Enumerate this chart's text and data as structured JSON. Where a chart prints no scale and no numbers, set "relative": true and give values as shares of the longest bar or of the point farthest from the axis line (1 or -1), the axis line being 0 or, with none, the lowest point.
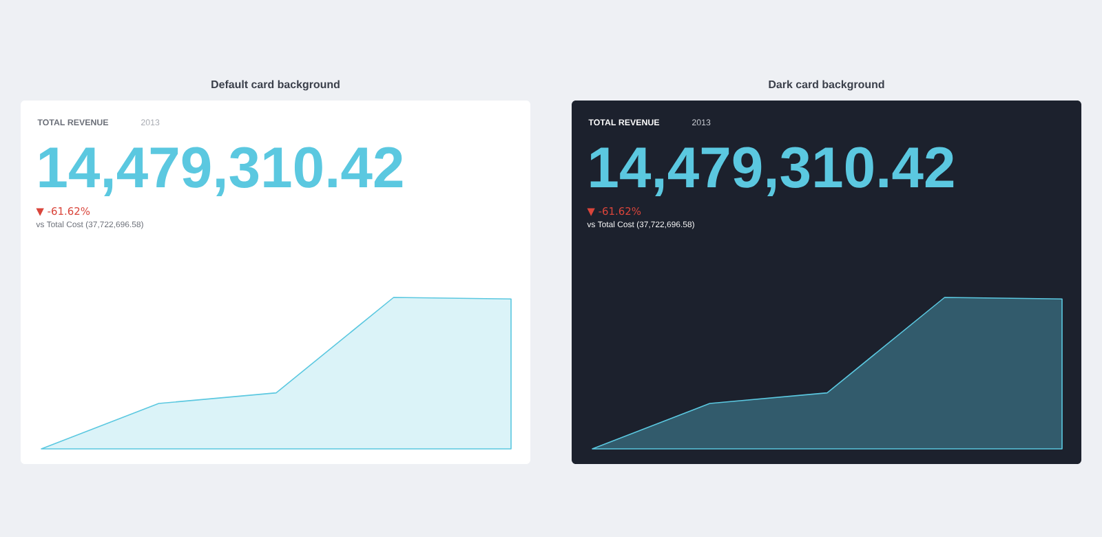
{
  "chart_data": [
    {
      "type": "area",
      "title": "Default card background",
      "relative": true,
      "categories": [
        null,
        null,
        null,
        null,
        null
      ],
      "annotations": [
        "TOTAL REVENUE",
        "2013",
        "14,479,310.42",
        "▼ -61.62%",
        "vs Total Cost (37,722,696.58)"
      ],
      "series": [
        {
          "color": "#5bc8e0",
          "values": [
            0,
            0.3,
            0.37,
            1,
            0.99
          ]
        }
      ]
    },
    {
      "type": "area",
      "title": "Dark card background",
      "relative": true,
      "categories": [
        null,
        null,
        null,
        null,
        null
      ],
      "annotations": [
        "TOTAL REVENUE",
        "2013",
        "14,479,310.42",
        "▼ -61.62%",
        "vs Total Cost (37,722,696.58)"
      ],
      "series": [
        {
          "color": "#5bc8e0",
          "values": [
            0,
            0.3,
            0.37,
            1,
            0.99
          ]
        }
      ]
    }
  ]
}
